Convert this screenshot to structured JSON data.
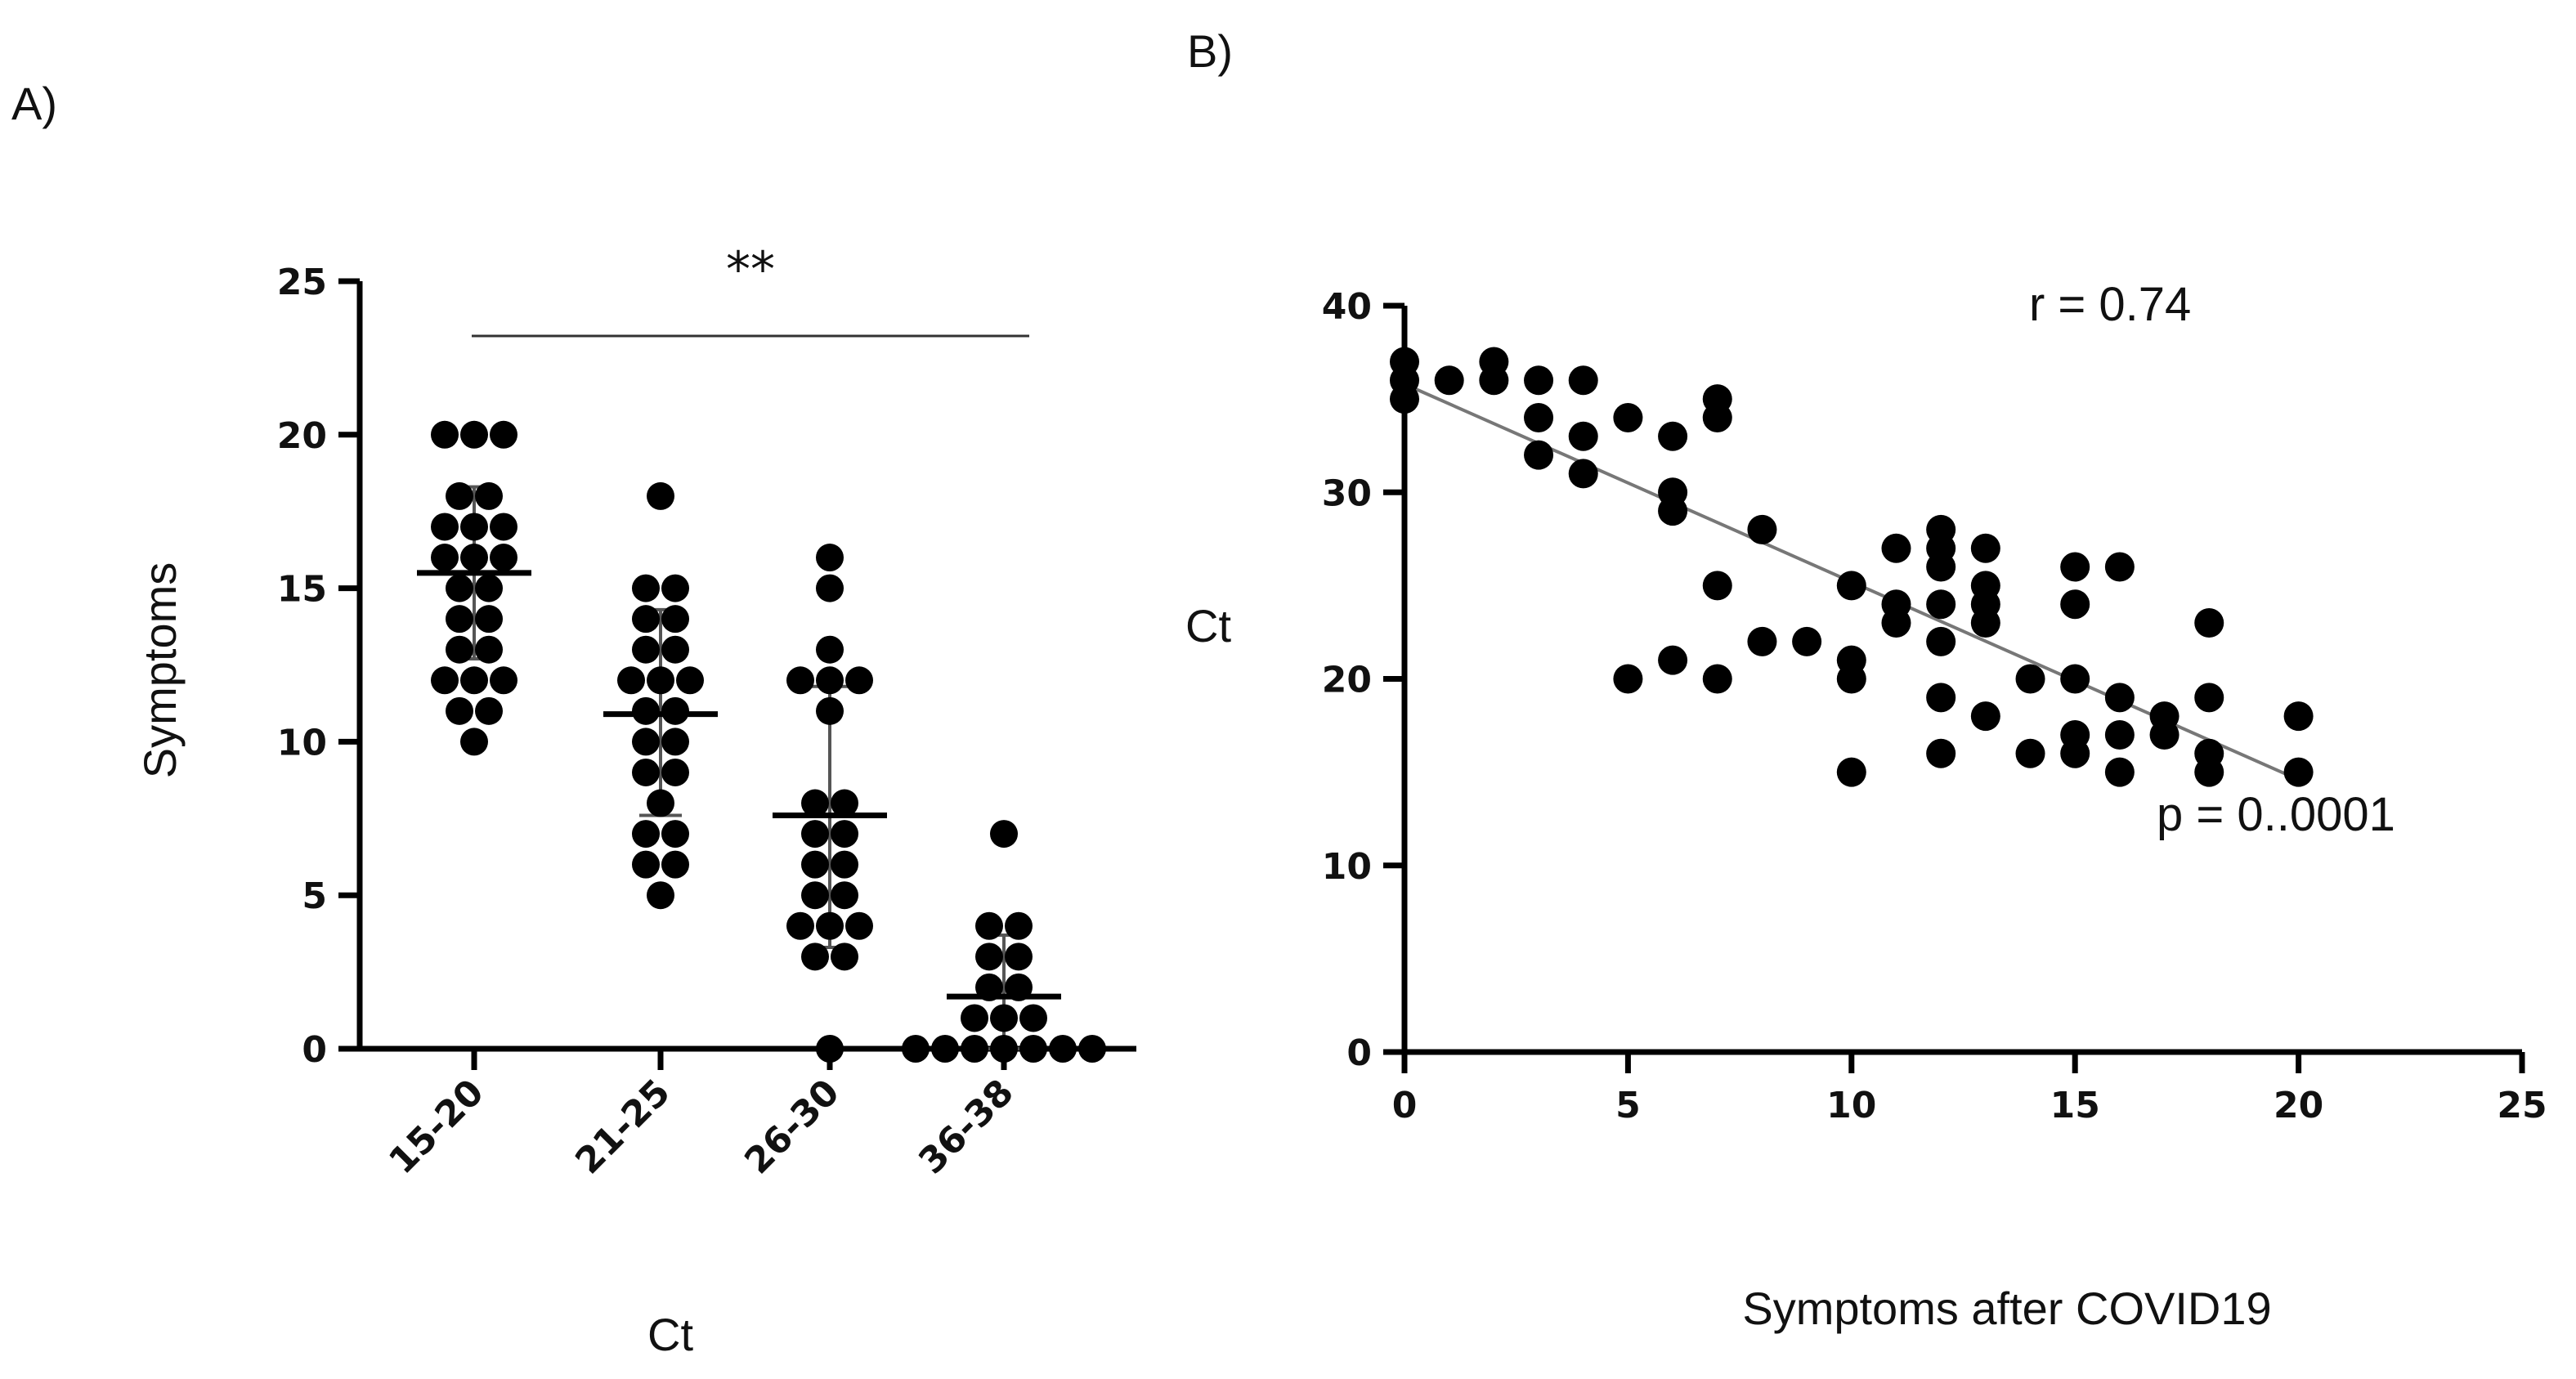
{
  "figure": {
    "panel_a_label": "A)",
    "panel_b_label": "B)"
  },
  "chart_data": [
    {
      "type": "scatter",
      "panel": "A",
      "title": "",
      "xlabel": "Ct",
      "ylabel": "Symptoms",
      "categories": [
        "15-20",
        "21-25",
        "26-30",
        "36-38"
      ],
      "ylim": [
        0,
        25
      ],
      "yticks": [
        0,
        5,
        10,
        15,
        20,
        25
      ],
      "significance": "**",
      "groups": [
        {
          "name": "15-20",
          "mean": 15.5,
          "sd": [
            12.7,
            18.3
          ],
          "values": [
            20,
            20,
            20,
            18,
            18,
            17,
            17,
            17,
            16,
            16,
            16,
            15,
            15,
            14,
            14,
            13,
            13,
            12,
            12,
            12,
            11,
            11,
            10
          ]
        },
        {
          "name": "21-25",
          "mean": 10.9,
          "sd": [
            7.6,
            14.3
          ],
          "values": [
            18,
            15,
            15,
            14,
            14,
            13,
            13,
            12,
            12,
            12,
            11,
            11,
            10,
            10,
            9,
            9,
            8,
            7,
            7,
            6,
            6,
            5
          ]
        },
        {
          "name": "26-30",
          "mean": 7.6,
          "sd": [
            3.3,
            11.8
          ],
          "values": [
            16,
            15,
            13,
            12,
            12,
            12,
            11,
            8,
            8,
            7,
            7,
            6,
            6,
            5,
            5,
            4,
            4,
            4,
            3,
            3,
            0
          ]
        },
        {
          "name": "36-38",
          "mean": 1.7,
          "sd": [
            0,
            3.7
          ],
          "values": [
            7,
            4,
            4,
            3,
            3,
            2,
            2,
            1,
            1,
            1,
            0,
            0,
            0,
            0,
            0,
            0,
            0
          ]
        }
      ]
    },
    {
      "type": "scatter",
      "panel": "B",
      "title": "",
      "xlabel": "Symptoms after COVID19",
      "ylabel": "Ct",
      "xlim": [
        0,
        25
      ],
      "ylim": [
        0,
        40
      ],
      "xticks": [
        0,
        5,
        10,
        15,
        20,
        25
      ],
      "yticks": [
        0,
        10,
        20,
        30,
        40
      ],
      "r_label": "r = 0.74",
      "p_label": "p = 0..0001",
      "trendline": {
        "x": [
          0,
          20
        ],
        "y": [
          35.8,
          14.6
        ]
      },
      "points": [
        [
          0,
          37
        ],
        [
          0,
          36
        ],
        [
          0,
          35
        ],
        [
          1,
          36
        ],
        [
          2,
          37
        ],
        [
          2,
          36
        ],
        [
          3,
          36
        ],
        [
          3,
          34
        ],
        [
          3,
          32
        ],
        [
          4,
          36
        ],
        [
          4,
          33
        ],
        [
          4,
          31
        ],
        [
          5,
          34
        ],
        [
          5,
          20
        ],
        [
          6,
          33
        ],
        [
          6,
          30
        ],
        [
          6,
          29
        ],
        [
          6,
          21
        ],
        [
          7,
          35
        ],
        [
          7,
          34
        ],
        [
          7,
          25
        ],
        [
          7,
          20
        ],
        [
          8,
          28
        ],
        [
          8,
          22
        ],
        [
          9,
          22
        ],
        [
          10,
          25
        ],
        [
          10,
          21
        ],
        [
          10,
          20
        ],
        [
          10,
          15
        ],
        [
          11,
          27
        ],
        [
          11,
          24
        ],
        [
          11,
          23
        ],
        [
          12,
          28
        ],
        [
          12,
          27
        ],
        [
          12,
          26
        ],
        [
          12,
          24
        ],
        [
          12,
          22
        ],
        [
          12,
          19
        ],
        [
          12,
          16
        ],
        [
          13,
          27
        ],
        [
          13,
          25
        ],
        [
          13,
          24
        ],
        [
          13,
          23
        ],
        [
          13,
          18
        ],
        [
          14,
          20
        ],
        [
          14,
          16
        ],
        [
          15,
          26
        ],
        [
          15,
          24
        ],
        [
          15,
          20
        ],
        [
          15,
          17
        ],
        [
          15,
          16
        ],
        [
          16,
          26
        ],
        [
          16,
          19
        ],
        [
          16,
          17
        ],
        [
          16,
          15
        ],
        [
          17,
          18
        ],
        [
          17,
          17
        ],
        [
          18,
          23
        ],
        [
          18,
          19
        ],
        [
          18,
          16
        ],
        [
          18,
          15
        ],
        [
          20,
          18
        ],
        [
          20,
          15
        ]
      ]
    }
  ]
}
